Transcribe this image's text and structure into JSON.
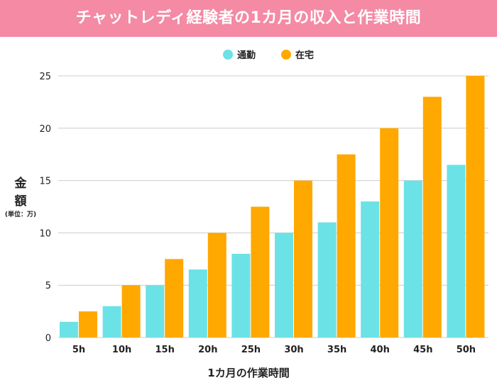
{
  "title": "チャットレディ経験者の1カ月の収入と作業時間",
  "colors": {
    "title_bg": "#f48aa4",
    "commute": "#6be2e6",
    "home": "#ffa800",
    "grid": "#cccccc",
    "text": "#222222"
  },
  "chart_data": {
    "type": "bar",
    "categories": [
      "5h",
      "10h",
      "15h",
      "20h",
      "25h",
      "30h",
      "35h",
      "40h",
      "45h",
      "50h"
    ],
    "series": [
      {
        "name": "通勤",
        "values": [
          1.5,
          3,
          5,
          6.5,
          8,
          10,
          11,
          13,
          15,
          16.5
        ]
      },
      {
        "name": "在宅",
        "values": [
          2.5,
          5,
          7.5,
          10,
          12.5,
          15,
          17.5,
          20,
          23,
          25
        ]
      }
    ],
    "ylim": [
      0,
      25
    ],
    "yticks": [
      0,
      5,
      10,
      15,
      20,
      25
    ],
    "ylabel_chars": [
      "金",
      "額"
    ],
    "yunit": "(単位：万)",
    "xlabel": "1カ月の作業時間",
    "legend_position": "top-center",
    "grid": true
  }
}
